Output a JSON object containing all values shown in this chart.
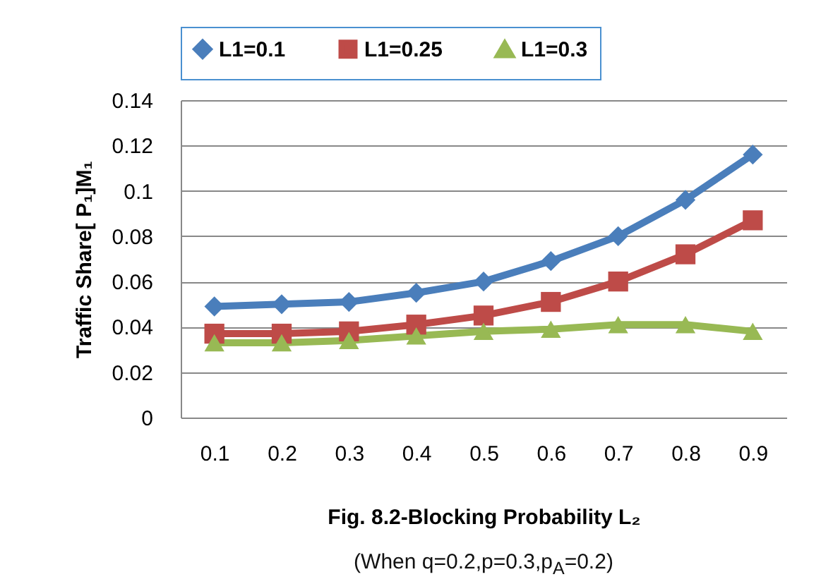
{
  "chart_data": {
    "type": "line",
    "xlabel": "Fig. 8.2-Blocking Probability L₂",
    "ylabel": "Traffic Share[ P₁]M₁",
    "annotations": [
      "(When  q=0.2,p=0.3,p$_{A}$=0.2)"
    ],
    "categories": [
      "0.1",
      "0.2",
      "0.3",
      "0.4",
      "0.5",
      "0.6",
      "0.7",
      "0.8",
      "0.9"
    ],
    "series": [
      {
        "name": "L1=0.1",
        "color": "#4a7ebb",
        "marker": "diamond",
        "values": [
          0.049,
          0.05,
          0.051,
          0.055,
          0.06,
          0.069,
          0.08,
          0.096,
          0.116
        ]
      },
      {
        "name": "L1=0.25",
        "color": "#be4b48",
        "marker": "square",
        "values": [
          0.037,
          0.037,
          0.038,
          0.041,
          0.045,
          0.051,
          0.06,
          0.072,
          0.087
        ]
      },
      {
        "name": "L1=0.3",
        "color": "#98b954",
        "marker": "triangle",
        "values": [
          0.033,
          0.033,
          0.034,
          0.036,
          0.038,
          0.039,
          0.041,
          0.041,
          0.038
        ]
      }
    ],
    "ylim": [
      0,
      0.14
    ],
    "yticks": [
      0,
      0.02,
      0.04,
      0.06,
      0.08,
      0.1,
      0.12,
      0.14
    ],
    "grid": "y",
    "legend": "top",
    "line_style": "solid"
  }
}
